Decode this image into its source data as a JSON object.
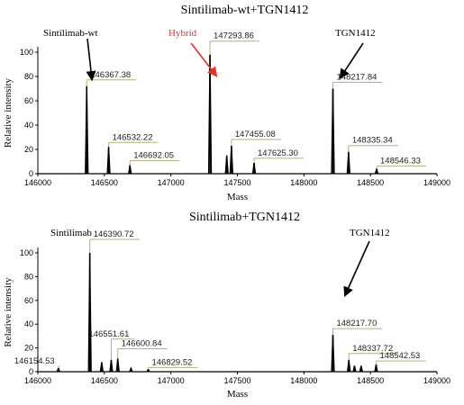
{
  "chart_data": [
    {
      "type": "line",
      "title": "Sintilimab-wt+TGN1412",
      "xlabel": "Mass",
      "ylabel": "Relative intensity",
      "xlim": [
        146000,
        149000
      ],
      "ylim": [
        0,
        100
      ],
      "xticks": [
        146000,
        146500,
        147000,
        147500,
        148000,
        148500,
        149000
      ],
      "yticks": [
        0,
        20,
        40,
        60,
        80,
        100
      ],
      "grid": false,
      "peaks": [
        {
          "x": 146367.38,
          "y": 72,
          "label": "146367.38"
        },
        {
          "x": 146532.22,
          "y": 22,
          "label": "146532.22"
        },
        {
          "x": 146692.05,
          "y": 7,
          "label": "146692.05"
        },
        {
          "x": 147293.86,
          "y": 98,
          "label": "147293.86"
        },
        {
          "x": 147420.0,
          "y": 15,
          "label": ""
        },
        {
          "x": 147455.08,
          "y": 23,
          "label": "147455.08"
        },
        {
          "x": 147625.3,
          "y": 9,
          "label": "147625.30"
        },
        {
          "x": 148217.84,
          "y": 70,
          "label": "148217.84"
        },
        {
          "x": 148335.34,
          "y": 18,
          "label": "148335.34"
        },
        {
          "x": 148546.33,
          "y": 4,
          "label": "148546.33"
        }
      ],
      "annotations": [
        {
          "text": "Sintilimab-wt",
          "color": "#000000",
          "target_x": 146367.38,
          "target_y": 80
        },
        {
          "text": "Hybrid",
          "color": "#e8312a",
          "target_x": 147293.86,
          "target_y": 100
        },
        {
          "text": "TGN1412",
          "color": "#000000",
          "target_x": 148217.84,
          "target_y": 78
        }
      ]
    },
    {
      "type": "line",
      "title": "Sintilimab+TGN1412",
      "xlabel": "Mass",
      "ylabel": "Relative intensity",
      "xlim": [
        146000,
        149000
      ],
      "ylim": [
        0,
        100
      ],
      "xticks": [
        146000,
        146500,
        147000,
        147500,
        148000,
        148500,
        149000
      ],
      "yticks": [
        0,
        20,
        40,
        60,
        80,
        100
      ],
      "grid": false,
      "peaks": [
        {
          "x": 146154.53,
          "y": 3,
          "label": "146154.53"
        },
        {
          "x": 146390.72,
          "y": 100,
          "label": "146390.72"
        },
        {
          "x": 146480.0,
          "y": 8,
          "label": ""
        },
        {
          "x": 146551.61,
          "y": 10,
          "label": "146551.61"
        },
        {
          "x": 146600.84,
          "y": 11,
          "label": "146600.84"
        },
        {
          "x": 146700.0,
          "y": 3,
          "label": ""
        },
        {
          "x": 146829.52,
          "y": 2,
          "label": "146829.52"
        },
        {
          "x": 148217.7,
          "y": 31,
          "label": "148217.70"
        },
        {
          "x": 148337.72,
          "y": 10,
          "label": "148337.72"
        },
        {
          "x": 148380.0,
          "y": 5,
          "label": ""
        },
        {
          "x": 148430.0,
          "y": 5,
          "label": ""
        },
        {
          "x": 148542.53,
          "y": 6,
          "label": "148542.53"
        }
      ],
      "annotations": [
        {
          "text": "Sintilimab",
          "color": "#000000",
          "target_x": null,
          "target_y": null
        },
        {
          "text": "TGN1412",
          "color": "#000000",
          "target_x": 148217.7,
          "target_y": 48
        }
      ]
    }
  ]
}
